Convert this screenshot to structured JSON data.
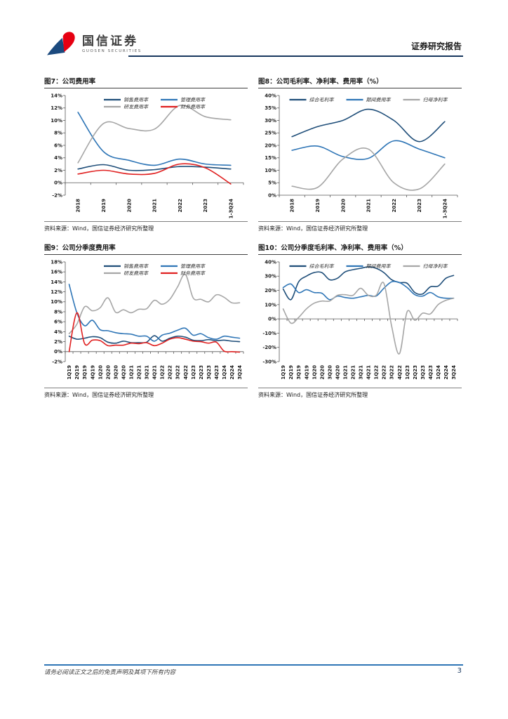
{
  "header": {
    "logo_cn": "国信证券",
    "logo_en": "GUOSEN SECURITIES",
    "logo_blue": "#1B4A7E",
    "logo_red": "#E60012",
    "report_type": "证券研究报告"
  },
  "footer": {
    "disclaimer": "请务必阅读正文之后的免责声明及其项下所有内容",
    "page": "3"
  },
  "chart_data": [
    {
      "type": "line",
      "title": "图7：公司费用率",
      "source": "资料来源：Wind，国信证券经济研究所整理",
      "categories": [
        "2018",
        "2019",
        "2020",
        "2021",
        "2022",
        "2023",
        "1-3Q24"
      ],
      "ylim": [
        -2,
        14
      ],
      "ystep": 2,
      "legend_position": "top",
      "grid": false,
      "series": [
        {
          "name": "销售费用率",
          "color": "#1F4E79",
          "values": [
            2.2,
            2.9,
            2.0,
            2.1,
            2.6,
            2.5,
            2.2
          ]
        },
        {
          "name": "管理费用率",
          "color": "#2E75B6",
          "values": [
            11.3,
            5.0,
            3.6,
            2.8,
            3.8,
            3.0,
            2.8
          ]
        },
        {
          "name": "研发费用率",
          "color": "#A6A6A6",
          "values": [
            3.2,
            9.5,
            8.7,
            8.6,
            12.4,
            10.6,
            10.1
          ]
        },
        {
          "name": "财务费用率",
          "color": "#E02020",
          "values": [
            1.4,
            2.0,
            1.4,
            1.5,
            3.0,
            2.4,
            -0.2
          ]
        }
      ]
    },
    {
      "type": "line",
      "title": "图8：公司毛利率、净利率、费用率（%）",
      "source": "资料来源：Wind，国信证券经济研究所整理",
      "categories": [
        "2018",
        "2019",
        "2020",
        "2021",
        "2022",
        "2023",
        "1-3Q24"
      ],
      "ylim": [
        0,
        40
      ],
      "ystep": 5,
      "legend_position": "top",
      "grid": false,
      "series": [
        {
          "name": "综合毛利率",
          "color": "#1F4E79",
          "values": [
            23.5,
            27.5,
            30.0,
            34.5,
            30.0,
            21.5,
            29.5
          ]
        },
        {
          "name": "期间费用率",
          "color": "#2E75B6",
          "values": [
            18.0,
            19.7,
            15.5,
            14.8,
            21.8,
            18.5,
            15.0
          ]
        },
        {
          "name": "归母净利率",
          "color": "#A6A6A6",
          "values": [
            3.6,
            3.1,
            14.5,
            18.5,
            5.0,
            2.5,
            12.5
          ]
        }
      ]
    },
    {
      "type": "line",
      "title": "图9：公司分季度费用率",
      "source": "资料来源：Wind，国信证券经济研究所整理",
      "categories": [
        "1Q19",
        "2Q19",
        "3Q19",
        "4Q19",
        "1Q20",
        "2Q20",
        "3Q20",
        "4Q20",
        "1Q21",
        "2Q21",
        "3Q21",
        "4Q21",
        "1Q22",
        "2Q22",
        "3Q22",
        "4Q22",
        "1Q23",
        "2Q23",
        "3Q23",
        "4Q23",
        "1Q24",
        "2Q24",
        "3Q24"
      ],
      "ylim": [
        -2,
        18
      ],
      "ystep": 2,
      "legend_position": "top",
      "grid": false,
      "series": [
        {
          "name": "销售费用率",
          "color": "#1F4E79",
          "values": [
            3.1,
            2.5,
            2.7,
            3.0,
            2.8,
            1.9,
            1.7,
            2.1,
            1.8,
            1.8,
            1.9,
            3.2,
            2.1,
            2.7,
            3.1,
            2.9,
            2.3,
            2.2,
            2.4,
            2.2,
            2.3,
            2.1,
            2.0
          ]
        },
        {
          "name": "管理费用率",
          "color": "#2E75B6",
          "values": [
            13.5,
            7.8,
            5.2,
            6.3,
            4.4,
            4.2,
            3.8,
            3.6,
            3.5,
            3.1,
            3.1,
            2.1,
            3.3,
            3.7,
            4.3,
            4.7,
            3.3,
            3.6,
            2.8,
            2.5,
            3.1,
            2.9,
            2.7
          ]
        },
        {
          "name": "研发费用率",
          "color": "#A6A6A6",
          "values": [
            3.6,
            5.5,
            9.0,
            8.2,
            8.8,
            10.8,
            7.9,
            8.4,
            7.8,
            8.5,
            8.6,
            10.3,
            9.5,
            10.5,
            13.0,
            15.5,
            10.8,
            10.5,
            10.0,
            11.4,
            10.9,
            9.8,
            9.8
          ]
        },
        {
          "name": "财务费用率",
          "color": "#E02020",
          "values": [
            0.0,
            7.8,
            1.6,
            2.3,
            2.2,
            1.2,
            1.3,
            1.3,
            1.7,
            1.6,
            1.8,
            1.2,
            1.7,
            2.5,
            2.8,
            2.5,
            2.1,
            2.0,
            1.7,
            1.9,
            0.1,
            0.0,
            -0.1
          ]
        }
      ]
    },
    {
      "type": "line",
      "title": "图10：公司分季度毛利率、净利率、费用率（%）",
      "source": "资料来源：Wind，国信证券经济研究所整理",
      "categories": [
        "1Q19",
        "2Q19",
        "3Q19",
        "4Q19",
        "1Q20",
        "2Q20",
        "3Q20",
        "4Q20",
        "1Q21",
        "2Q21",
        "3Q21",
        "4Q21",
        "1Q22",
        "2Q22",
        "3Q22",
        "4Q22",
        "1Q23",
        "2Q23",
        "3Q23",
        "4Q23",
        "1Q24",
        "2Q24",
        "3Q24"
      ],
      "ylim": [
        -30,
        40
      ],
      "ystep": 10,
      "legend_position": "top",
      "grid": false,
      "series": [
        {
          "name": "综合毛利率",
          "color": "#1F4E79",
          "values": [
            21.0,
            13.5,
            26.0,
            30.0,
            32.5,
            32.5,
            27.5,
            28.5,
            33.0,
            34.5,
            35.5,
            36.5,
            35.5,
            32.5,
            27.5,
            25.5,
            25.0,
            18.5,
            17.5,
            22.5,
            23.0,
            28.5,
            30.5
          ]
        },
        {
          "name": "期间费用率",
          "color": "#2E75B6",
          "values": [
            22.0,
            24.5,
            18.5,
            20.5,
            18.5,
            18.0,
            13.5,
            16.0,
            15.0,
            14.5,
            15.5,
            16.5,
            16.0,
            21.5,
            26.0,
            25.5,
            22.0,
            17.0,
            16.0,
            18.5,
            15.5,
            14.5,
            14.5
          ]
        },
        {
          "name": "归母净利率",
          "color": "#A6A6A6",
          "values": [
            7.0,
            -3.0,
            1.0,
            7.0,
            11.0,
            12.5,
            12.5,
            16.5,
            17.0,
            16.5,
            21.5,
            16.5,
            16.5,
            25.0,
            -5.0,
            -24.5,
            5.0,
            -1.0,
            4.0,
            3.5,
            10.0,
            13.0,
            14.5
          ]
        }
      ]
    }
  ]
}
